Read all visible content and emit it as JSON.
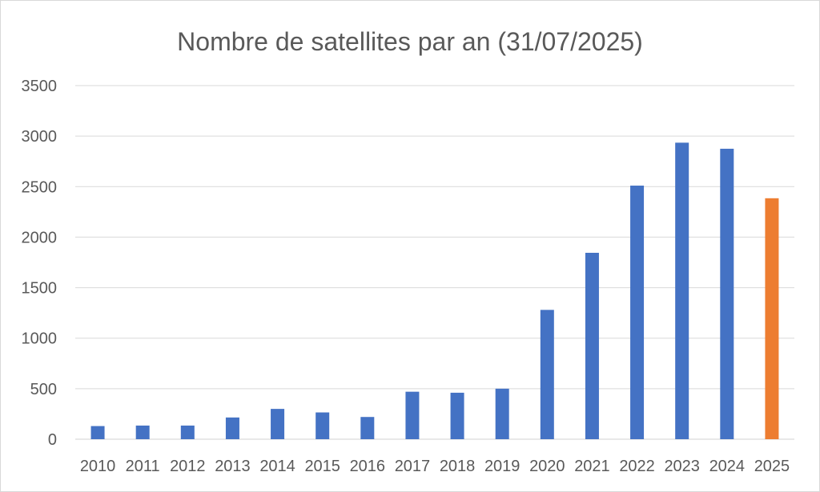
{
  "chart_data": {
    "type": "bar",
    "title": "Nombre de satellites par an (31/07/2025)",
    "xlabel": "",
    "ylabel": "",
    "categories": [
      "2010",
      "2011",
      "2012",
      "2013",
      "2014",
      "2015",
      "2016",
      "2017",
      "2018",
      "2019",
      "2020",
      "2021",
      "2022",
      "2023",
      "2024",
      "2025"
    ],
    "series": [
      {
        "values": [
          130,
          135,
          135,
          215,
          300,
          265,
          220,
          470,
          460,
          500,
          1280,
          1845,
          2510,
          2935,
          2875,
          2385
        ]
      }
    ],
    "bar_colors": [
      "#4472c4",
      "#4472c4",
      "#4472c4",
      "#4472c4",
      "#4472c4",
      "#4472c4",
      "#4472c4",
      "#4472c4",
      "#4472c4",
      "#4472c4",
      "#4472c4",
      "#4472c4",
      "#4472c4",
      "#4472c4",
      "#4472c4",
      "#ed7d31"
    ],
    "ylim": [
      0,
      3500
    ],
    "yticks": [
      0,
      500,
      1000,
      1500,
      2000,
      2500,
      3000,
      3500
    ],
    "grid": true,
    "legend": "none"
  }
}
